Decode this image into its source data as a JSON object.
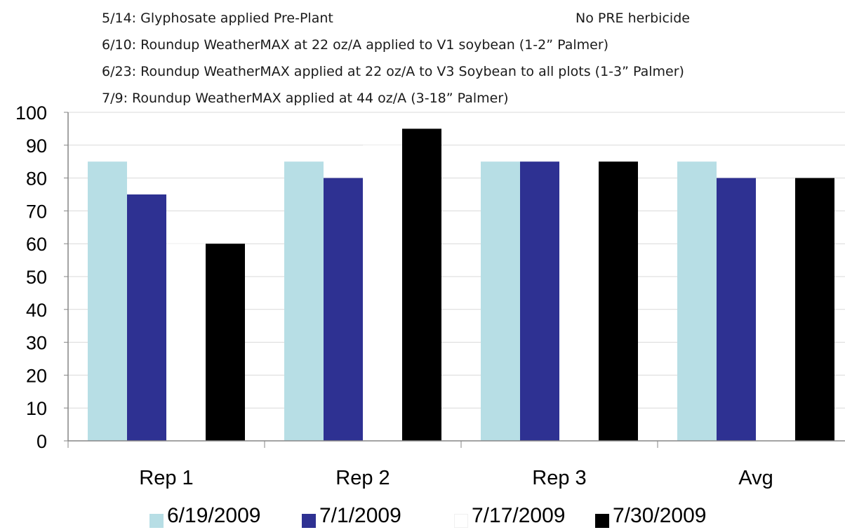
{
  "annotations": [
    "5/14: Glyphosate applied Pre-Plant",
    "No PRE herbicide",
    "6/10: Roundup WeatherMAX at 22 oz/A applied to V1 soybean (1-2” Palmer)",
    "6/23: Roundup WeatherMAX applied  at 22 oz/A to V3 Soybean to all plots (1-3” Palmer)",
    "7/9: Roundup WeatherMAX applied at 44 oz/A (3-18” Palmer)"
  ],
  "chart_data": {
    "type": "bar",
    "title": "",
    "xlabel": "",
    "ylabel": "",
    "ylim": [
      0,
      100
    ],
    "yticks": [
      0,
      10,
      20,
      30,
      40,
      50,
      60,
      70,
      80,
      90,
      100
    ],
    "grid": true,
    "legend_position": "bottom",
    "categories": [
      "Rep 1",
      "Rep 2",
      "Rep 3",
      "Avg"
    ],
    "series": [
      {
        "name": "6/19/2009",
        "color": "#b7dee5",
        "values": [
          85,
          85,
          85,
          85
        ]
      },
      {
        "name": "7/1/2009",
        "color": "#2e3192",
        "values": [
          75,
          80,
          85,
          80
        ]
      },
      {
        "name": "7/17/2009",
        "color": "#ffffff",
        "values": [
          60,
          90,
          85,
          79
        ]
      },
      {
        "name": "7/30/2009",
        "color": "#000000",
        "values": [
          60,
          95,
          85,
          80
        ]
      }
    ]
  }
}
